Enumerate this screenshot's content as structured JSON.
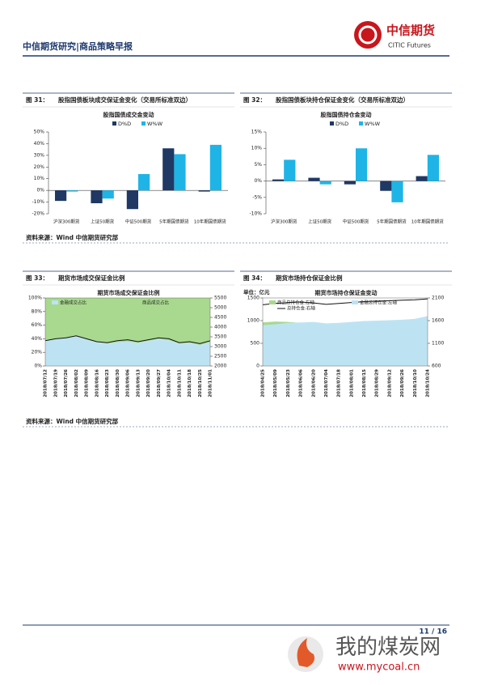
{
  "header": {
    "title": "中信期货研究|商品策略早报",
    "logo_cn": "中信期货",
    "logo_en": "CITIC Futures"
  },
  "figures": [
    {
      "label": "图 31：",
      "caption": "股指国债板块成交保证金变化（交易所标准双边）",
      "chart_data": {
        "type": "bar",
        "title": "股指国债成交金变动",
        "categories": [
          "沪深300期货",
          "上证50期货",
          "中证500期货",
          "5年期国债期货",
          "10年期国债期货"
        ],
        "series": [
          {
            "name": "D%D",
            "color": "#1f3864",
            "values": [
              -9,
              -11,
              -16,
              36,
              -1
            ]
          },
          {
            "name": "W%W",
            "color": "#1fb4e6",
            "values": [
              -1,
              -7,
              14,
              31,
              39
            ]
          }
        ],
        "ylim": [
          -20,
          50
        ],
        "yticks": [
          {
            "value": -20,
            "label": "-20%"
          },
          {
            "value": -10,
            "label": "-10%"
          },
          {
            "value": 0,
            "label": "0%"
          },
          {
            "value": 10,
            "label": "10%"
          },
          {
            "value": 20,
            "label": "20%"
          },
          {
            "value": 30,
            "label": "30%"
          },
          {
            "value": 40,
            "label": "40%"
          },
          {
            "value": 50,
            "label": "50%"
          }
        ]
      }
    },
    {
      "label": "图 32：",
      "caption": "股指国债板块持仓保证金变化（交易所标准双边）",
      "chart_data": {
        "type": "bar",
        "title": "股指国债持仓金变动",
        "categories": [
          "沪深300期货",
          "上证50期货",
          "中证500期货",
          "5年期国债期货",
          "10年期国债期货"
        ],
        "series": [
          {
            "name": "D%D",
            "color": "#1f3864",
            "values": [
              0.5,
              1,
              -1,
              -3,
              1.5
            ]
          },
          {
            "name": "W%W",
            "color": "#1fb4e6",
            "values": [
              6.5,
              -1,
              10,
              -6.5,
              8
            ]
          }
        ],
        "ylim": [
          -10,
          15
        ],
        "yticks": [
          {
            "value": -10,
            "label": "-10%"
          },
          {
            "value": -5,
            "label": "-5%"
          },
          {
            "value": 0,
            "label": "0%"
          },
          {
            "value": 5,
            "label": "5%"
          },
          {
            "value": 10,
            "label": "10%"
          },
          {
            "value": 15,
            "label": "15%"
          }
        ]
      }
    },
    {
      "label": "图 33：",
      "caption": "期货市场成交保证金比例",
      "chart_data": {
        "type": "area",
        "title": "期货市场成交保证金比例",
        "stacked": true,
        "categories": [
          "2018/07/12",
          "2018/07/19",
          "2018/07/26",
          "2018/08/02",
          "2018/08/09",
          "2018/08/16",
          "2018/08/23",
          "2018/08/30",
          "2018/09/06",
          "2018/09/13",
          "2018/09/20",
          "2018/09/27",
          "2018/10/04",
          "2018/10/11",
          "2018/10/18",
          "2018/10/25",
          "2018/11/01"
        ],
        "series": [
          {
            "name": "金融成交占比",
            "color": "#bde3f3",
            "kind": "area",
            "values": [
              38,
              40,
              41,
              44,
              39,
              35,
              33,
              35,
              36,
              34,
              37,
              40,
              38,
              33,
              34,
              31,
              35
            ]
          },
          {
            "name": "商品成交占比",
            "color": "#a8d98e",
            "kind": "area",
            "values": [
              62,
              60,
              59,
              56,
              61,
              65,
              67,
              65,
              64,
              66,
              63,
              60,
              62,
              67,
              66,
              69,
              65
            ]
          },
          {
            "color": "#111111",
            "kind": "line",
            "axis": "y2",
            "values": [
              3300,
              3400,
              3450,
              3550,
              3400,
              3250,
              3200,
              3300,
              3350,
              3250,
              3350,
              3450,
              3400,
              3200,
              3250,
              3150,
              3300
            ]
          }
        ],
        "ylim": [
          0,
          100
        ],
        "yticks": [
          {
            "value": 0,
            "label": "0%"
          },
          {
            "value": 20,
            "label": "20%"
          },
          {
            "value": 40,
            "label": "40%"
          },
          {
            "value": 60,
            "label": "60%"
          },
          {
            "value": 80,
            "label": "80%"
          },
          {
            "value": 100,
            "label": "100%"
          }
        ],
        "y2lim": [
          2000,
          5500
        ],
        "y2ticks": [
          2000,
          2500,
          3000,
          3500,
          4000,
          4500,
          5000,
          5500
        ]
      }
    },
    {
      "label": "图 34：",
      "caption": "期货市场持仓保证金比例",
      "chart_data": {
        "type": "area",
        "title": "期货市场持仓保证金变动",
        "ylabel": "单位：亿元",
        "stacked": false,
        "categories": [
          "2018/04/25",
          "2018/05/09",
          "2018/05/23",
          "2018/06/06",
          "2018/06/20",
          "2018/07/04",
          "2018/07/18",
          "2018/08/01",
          "2018/08/15",
          "2018/08/29",
          "2018/09/12",
          "2018/09/26",
          "2018/10/10",
          "2018/10/24"
        ],
        "series": [
          {
            "name": "商品总持仓金:左轴",
            "color": "#a8d98e",
            "kind": "area",
            "values": [
              960,
              980,
              970,
              950,
              900,
              880,
              870,
              880,
              900,
              910,
              920,
              930,
              950,
              980
            ]
          },
          {
            "name": "金融总持仓金:左轴",
            "color": "#bde3f3",
            "kind": "area",
            "values": [
              900,
              920,
              950,
              960,
              970,
              940,
              950,
              970,
              990,
              1000,
              1010,
              1020,
              1040,
              1100
            ]
          },
          {
            "name": "总持仓金:右轴",
            "color": "#111111",
            "kind": "line",
            "axis": "y2",
            "values": [
              1950,
              1980,
              2000,
              2010,
              1990,
              1960,
              1980,
              2000,
              2020,
              2030,
              2040,
              2050,
              2060,
              2080
            ]
          }
        ],
        "ylim": [
          0,
          1500
        ],
        "yticks": [
          0,
          500,
          1000,
          1500
        ],
        "y2lim": [
          600,
          2100
        ],
        "y2ticks": [
          600,
          1100,
          1600,
          2100
        ]
      }
    }
  ],
  "sources": [
    "资料来源：Wind 中信期货研究部",
    "资料来源：Wind 中信期货研究部"
  ],
  "footer": {
    "page": "11 / 16",
    "watermark": "我的煤炭网",
    "watermark_url": "www.mycoal.cn"
  }
}
